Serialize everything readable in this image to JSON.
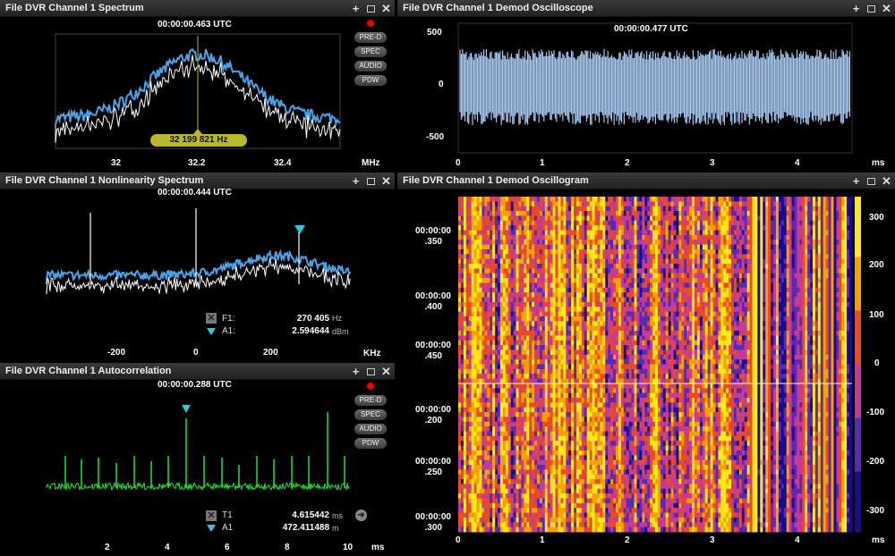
{
  "spectrum": {
    "title": "File DVR Channel 1 Spectrum",
    "timestamp": "00:00:00.463 UTC",
    "x_ticks": [
      "32",
      "32.2",
      "32.4"
    ],
    "unit": "MHz",
    "freq_label": "32 199 821 Hz",
    "buttons": [
      "PRE-D",
      "SPEC",
      "AUDIO",
      "PDW"
    ]
  },
  "nonlin": {
    "title": "File DVR Channel 1 Nonlinearity Spectrum",
    "timestamp": "00:00:00.444 UTC",
    "x_ticks": [
      "-200",
      "0",
      "200"
    ],
    "unit": "KHz",
    "markers": [
      {
        "name": "F1:",
        "value": "270 405",
        "unit": "Hz"
      },
      {
        "name": "A1:",
        "value": "2.594644",
        "unit": "dBm"
      }
    ]
  },
  "autocorr": {
    "title": "File DVR Channel 1 Autocorrelation",
    "timestamp": "00:00:00.288 UTC",
    "x_ticks": [
      "2",
      "4",
      "6",
      "8",
      "10"
    ],
    "unit": "ms",
    "buttons": [
      "PRE-D",
      "SPEC",
      "AUDIO",
      "PDW"
    ],
    "markers": [
      {
        "name": "T1",
        "value": "4.615442",
        "unit": "ms"
      },
      {
        "name": "A1",
        "value": "472.411488",
        "unit": "m"
      }
    ]
  },
  "oscope": {
    "title": "File DVR Channel 1 Demod Oscilloscope",
    "timestamp": "00:00:00.477 UTC",
    "y_ticks": [
      "500",
      "0",
      "-500"
    ],
    "x_ticks": [
      "0",
      "1",
      "2",
      "3",
      "4"
    ],
    "unit": "ms"
  },
  "oscillogram": {
    "title": "File DVR Channel 1 Demod Oscillogram",
    "y_labels": [
      {
        "t": "00:00:00",
        "s": ".350"
      },
      {
        "t": "00:00:00",
        "s": ".400"
      },
      {
        "t": "00:00:00",
        "s": ".450"
      },
      {
        "t": "00:00:00",
        "s": ".200"
      },
      {
        "t": "00:00:00",
        "s": ".250"
      },
      {
        "t": "00:00:00",
        "s": ".300"
      }
    ],
    "x_ticks": [
      "0",
      "1",
      "2",
      "3",
      "4"
    ],
    "unit": "ms",
    "colorbar_ticks": [
      "300",
      "200",
      "100",
      "0",
      "-100",
      "-200",
      "-300"
    ]
  },
  "colors": {
    "spectrum_fill": "#4aa3e8",
    "autocorr_trace": "#22e03a",
    "oscope_trace": "#a8c8f0",
    "marker": "#2cc6e0",
    "freq_badge": "#b8b82a"
  }
}
